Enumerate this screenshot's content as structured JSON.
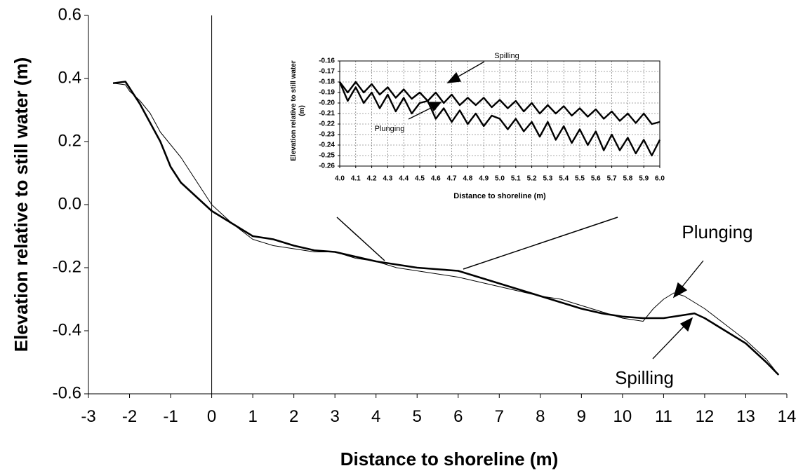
{
  "chart_data": [
    {
      "type": "line",
      "x_label": "Distance to shoreline (m)",
      "y_label": "Elevation relative to still water (m)",
      "x": [
        -2.4,
        -2.1,
        -2,
        -1.75,
        -1.5,
        -1.25,
        -1,
        -0.75,
        -0.5,
        -0.25,
        0,
        0.5,
        1,
        1.5,
        2,
        2.5,
        3,
        3.5,
        4,
        4.5,
        5,
        5.5,
        6,
        6.5,
        7,
        7.5,
        8,
        8.5,
        9,
        9.5,
        10,
        10.5,
        10.75,
        11,
        11.25,
        11.5,
        11.75,
        12,
        12.5,
        13,
        13.5,
        13.8
      ],
      "series": [
        {
          "name": "Plunging",
          "color": "#000000",
          "line_width": 1,
          "values": [
            0.385,
            0.38,
            0.36,
            0.33,
            0.29,
            0.23,
            0.19,
            0.15,
            0.1,
            0.05,
            0,
            -0.06,
            -0.11,
            -0.13,
            -0.14,
            -0.15,
            -0.15,
            -0.17,
            -0.18,
            -0.2,
            -0.21,
            -0.22,
            -0.23,
            -0.245,
            -0.26,
            -0.275,
            -0.29,
            -0.3,
            -0.32,
            -0.34,
            -0.36,
            -0.37,
            -0.33,
            -0.3,
            -0.28,
            -0.29,
            -0.31,
            -0.33,
            -0.38,
            -0.43,
            -0.49,
            -0.54
          ]
        },
        {
          "name": "Spilling",
          "color": "#000000",
          "line_width": 2.6,
          "values": [
            0.385,
            0.39,
            0.37,
            0.32,
            0.26,
            0.2,
            0.12,
            0.07,
            0.04,
            0.01,
            -0.02,
            -0.06,
            -0.1,
            -0.11,
            -0.13,
            -0.145,
            -0.15,
            -0.165,
            -0.18,
            -0.19,
            -0.2,
            -0.205,
            -0.21,
            -0.23,
            -0.25,
            -0.27,
            -0.29,
            -0.31,
            -0.33,
            -0.345,
            -0.355,
            -0.36,
            -0.36,
            -0.36,
            -0.355,
            -0.35,
            -0.345,
            -0.36,
            -0.4,
            -0.44,
            -0.5,
            -0.54
          ]
        }
      ],
      "annotations": [
        {
          "text": "Plunging"
        },
        {
          "text": "Spilling"
        }
      ],
      "xlim": [
        -3,
        14
      ],
      "ylim": [
        -0.6,
        0.6
      ],
      "xticks": [
        -3,
        -2,
        -1,
        0,
        1,
        2,
        3,
        4,
        5,
        6,
        7,
        8,
        9,
        10,
        11,
        12,
        13,
        14
      ],
      "yticks": [
        0.6,
        0.4,
        0.2,
        {
          "value": 0,
          "label": "0.0"
        },
        -0.2,
        -0.4,
        -0.6
      ],
      "grid": false
    },
    {
      "type": "line",
      "x_label": "Distance to shoreline (m)",
      "y_label": "Elevation relative to still water (m)",
      "x": [
        4,
        4.05,
        4.1,
        4.15,
        4.2,
        4.25,
        4.3,
        4.35,
        4.4,
        4.45,
        4.5,
        4.55,
        4.6,
        4.65,
        4.7,
        4.75,
        4.8,
        4.85,
        4.9,
        4.95,
        5,
        5.05,
        5.1,
        5.15,
        5.2,
        5.25,
        5.3,
        5.35,
        5.4,
        5.45,
        5.5,
        5.55,
        5.6,
        5.65,
        5.7,
        5.75,
        5.8,
        5.85,
        5.9,
        5.95,
        6
      ],
      "series": [
        {
          "name": "Spilling",
          "color": "#000000",
          "line_width": 2.4,
          "values": [
            -0.18,
            -0.19,
            -0.18,
            -0.19,
            -0.182,
            -0.192,
            -0.185,
            -0.195,
            -0.187,
            -0.196,
            -0.19,
            -0.198,
            -0.19,
            -0.2,
            -0.192,
            -0.202,
            -0.195,
            -0.202,
            -0.195,
            -0.204,
            -0.197,
            -0.205,
            -0.198,
            -0.208,
            -0.2,
            -0.21,
            -0.202,
            -0.21,
            -0.203,
            -0.212,
            -0.205,
            -0.213,
            -0.206,
            -0.215,
            -0.208,
            -0.217,
            -0.21,
            -0.219,
            -0.21,
            -0.22,
            -0.218
          ]
        },
        {
          "name": "Plunging",
          "color": "#000000",
          "line_width": 2.4,
          "values": [
            -0.18,
            -0.198,
            -0.185,
            -0.2,
            -0.19,
            -0.205,
            -0.192,
            -0.208,
            -0.195,
            -0.21,
            -0.2,
            -0.198,
            -0.215,
            -0.205,
            -0.218,
            -0.207,
            -0.22,
            -0.21,
            -0.222,
            -0.212,
            -0.215,
            -0.225,
            -0.215,
            -0.227,
            -0.218,
            -0.232,
            -0.218,
            -0.235,
            -0.222,
            -0.238,
            -0.225,
            -0.24,
            -0.227,
            -0.245,
            -0.23,
            -0.245,
            -0.233,
            -0.248,
            -0.235,
            -0.25,
            -0.235
          ]
        }
      ],
      "annotations": [
        {
          "text": "Spilling"
        },
        {
          "text": "Plunging"
        }
      ],
      "xlim": [
        4,
        6
      ],
      "ylim": [
        -0.26,
        -0.16
      ],
      "xticks": [
        {
          "value": 4,
          "label": "4.0"
        },
        4.1,
        4.2,
        4.3,
        4.4,
        4.5,
        4.6,
        4.7,
        4.8,
        4.9,
        {
          "value": 5,
          "label": "5.0"
        },
        5.1,
        5.2,
        5.3,
        5.4,
        5.5,
        5.6,
        5.7,
        5.8,
        5.9,
        {
          "value": 6,
          "label": "6.0"
        }
      ],
      "yticks": [
        -0.16,
        -0.17,
        -0.18,
        -0.19,
        {
          "value": -0.2,
          "label": "-0.20"
        },
        -0.21,
        -0.22,
        -0.23,
        -0.24,
        -0.25,
        -0.26
      ],
      "grid": true
    }
  ]
}
